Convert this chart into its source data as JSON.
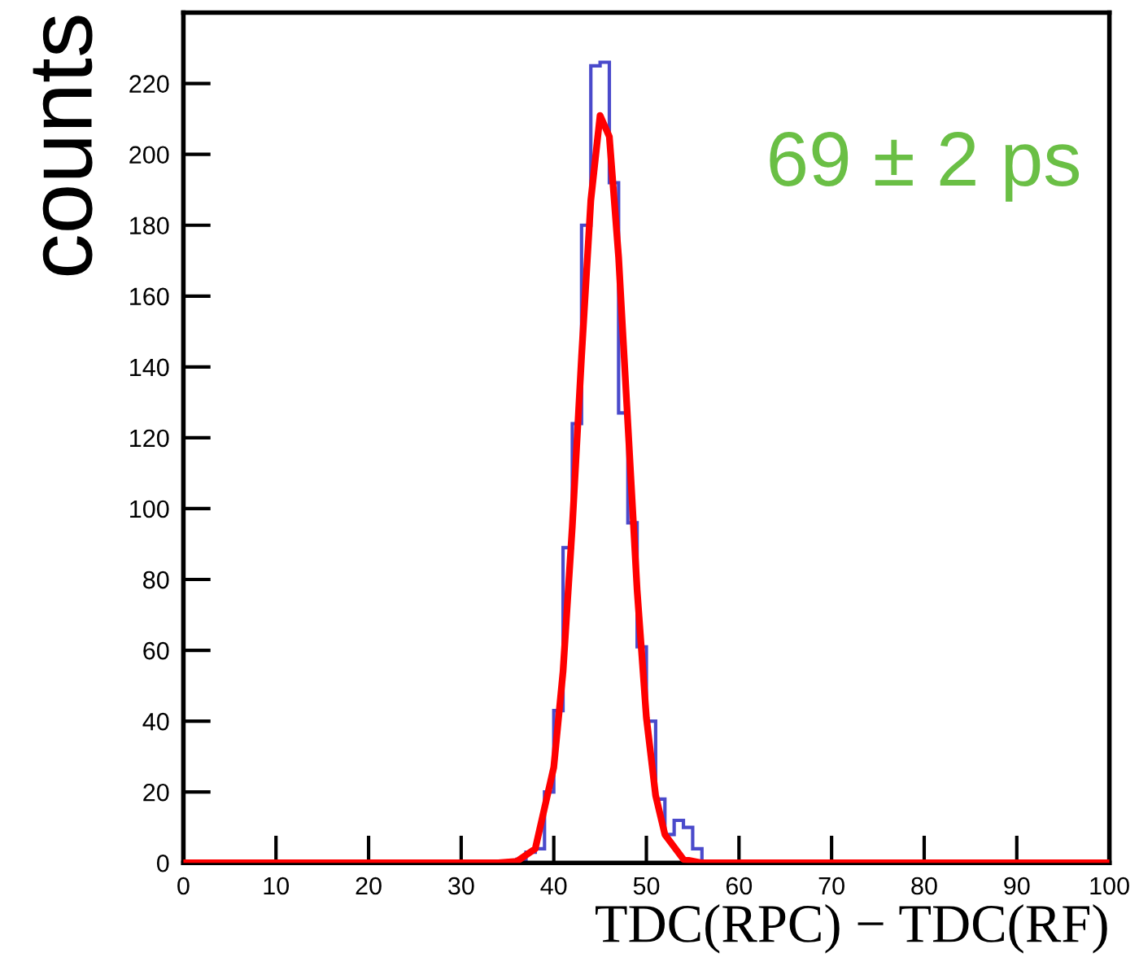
{
  "chart_data": {
    "type": "histogram",
    "xlabel": "TDC(RPC) − TDC(RF)",
    "ylabel": "counts",
    "bins": [
      35,
      36,
      37,
      38,
      39,
      40,
      41,
      42,
      43,
      44,
      45,
      46,
      47,
      48,
      49,
      50,
      51,
      52,
      53,
      54,
      55,
      56,
      57
    ],
    "values": [
      0,
      1,
      3,
      4,
      20,
      43,
      89,
      124,
      180,
      225,
      226,
      192,
      127,
      96,
      61,
      40,
      18,
      8,
      12,
      10,
      4,
      0
    ],
    "color": "#4a4acb",
    "series": [
      {
        "type": "line",
        "color": "#ff0000",
        "marker": "none",
        "line_style": "solid",
        "x": [
          0,
          34,
          36,
          38,
          40,
          41,
          42,
          43,
          44,
          45,
          46,
          47,
          48,
          49,
          50,
          51,
          52,
          54,
          56,
          58,
          100
        ],
        "values": [
          0,
          0,
          0.4,
          4,
          27,
          54,
          95,
          143,
          187,
          211,
          205,
          171,
          124,
          77,
          41,
          19,
          8,
          1,
          0,
          0,
          0
        ]
      }
    ],
    "xlim": [
      0,
      100
    ],
    "ylim": [
      0,
      240
    ],
    "xticks": [
      0,
      10,
      20,
      30,
      40,
      50,
      60,
      70,
      80,
      90,
      100
    ],
    "yticks": [
      0,
      20,
      40,
      60,
      80,
      100,
      120,
      140,
      160,
      180,
      200,
      220
    ],
    "grid": false,
    "annotations": [
      "69 ± 2 ps"
    ]
  }
}
